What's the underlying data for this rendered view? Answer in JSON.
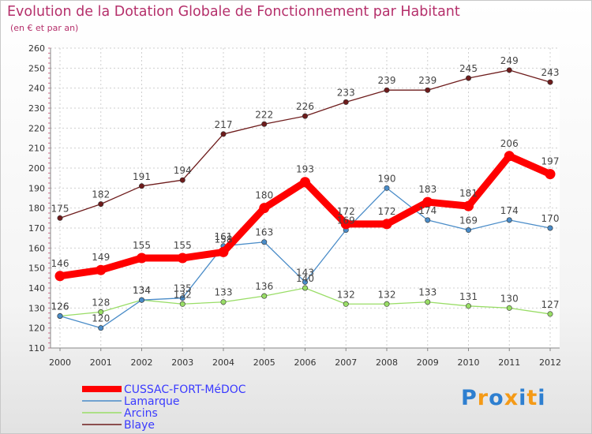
{
  "chart_data": {
    "type": "line",
    "title": "Evolution de la Dotation Globale de Fonctionnement par Habitant",
    "subtitle": "(en € et par an)",
    "xlabel": "",
    "ylabel": "",
    "categories": [
      "2000",
      "2001",
      "2002",
      "2003",
      "2004",
      "2005",
      "2006",
      "2007",
      "2008",
      "2009",
      "2010",
      "2011",
      "2012"
    ],
    "ylim": [
      110,
      260
    ],
    "yticks": [
      110,
      120,
      130,
      140,
      150,
      160,
      170,
      180,
      190,
      200,
      210,
      220,
      230,
      240,
      250,
      260
    ],
    "grid": true,
    "legend": "bottom-left",
    "series": [
      {
        "name": "Blaye",
        "color": "#6e1c1c",
        "values": [
          175,
          182,
          191,
          194,
          217,
          222,
          226,
          233,
          239,
          239,
          245,
          249,
          243
        ]
      },
      {
        "name": "Arcins",
        "color": "#99dd66",
        "values": [
          126,
          128,
          134,
          132,
          133,
          136,
          140,
          132,
          132,
          133,
          131,
          130,
          127
        ]
      },
      {
        "name": "Lamarque",
        "color": "#4a8cc8",
        "values": [
          126,
          120,
          134,
          135,
          161,
          163,
          143,
          169,
          190,
          174,
          169,
          174,
          170
        ]
      },
      {
        "name": "CUSSAC-FORT-MéDOC",
        "color": "#ff0000",
        "values": [
          146,
          149,
          155,
          155,
          158,
          180,
          193,
          172,
          172,
          183,
          181,
          206,
          197
        ]
      }
    ],
    "legend_order": [
      "CUSSAC-FORT-MéDOC",
      "Lamarque",
      "Arcins",
      "Blaye"
    ],
    "legend_text_color": "#3a3aff"
  },
  "logo": {
    "letters": [
      "P",
      "r",
      "o",
      "x",
      "i",
      "t",
      "i"
    ],
    "colors": [
      "#2e7fd0",
      "#f59a16",
      "#2e7fd0",
      "#f59a16",
      "#2e7fd0",
      "#f59a16",
      "#2e7fd0"
    ]
  }
}
